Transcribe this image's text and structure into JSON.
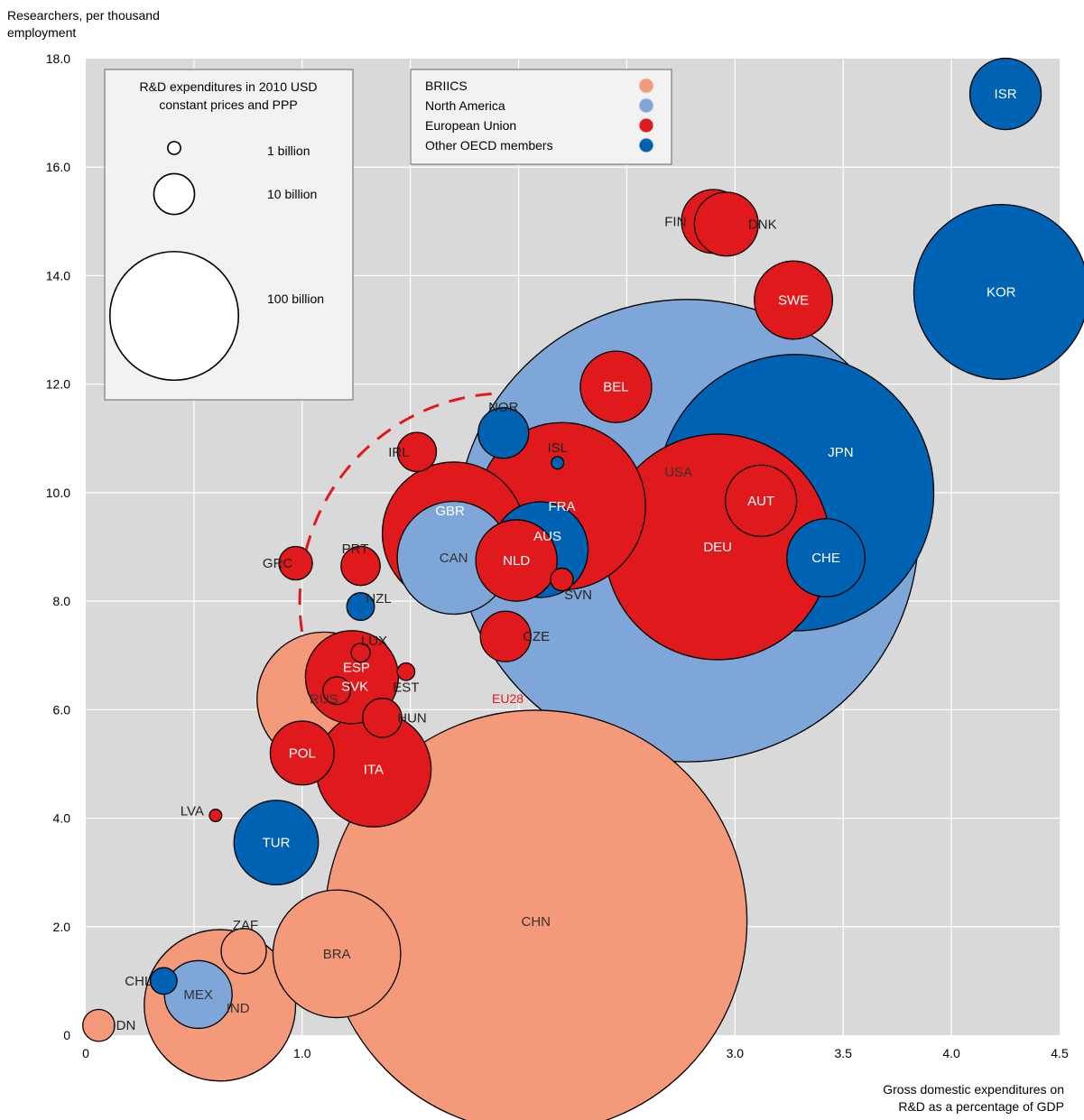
{
  "chart_data": {
    "type": "scatter",
    "bubble": true,
    "xlabel": "Gross domestic expenditures on R&D as a percentage of GDP",
    "ylabel": "Researchers, per thousand employment",
    "xlim": [
      0,
      4.5
    ],
    "ylim": [
      0,
      18
    ],
    "x_ticks": [
      "0",
      "0.5",
      "1.0",
      "1.5",
      "2.0",
      "2.5",
      "3.0",
      "3.5",
      "4.0",
      "4.5"
    ],
    "y_ticks": [
      "0",
      "2.0",
      "4.0",
      "6.0",
      "8.0",
      "10.0",
      "12.0",
      "14.0",
      "16.0",
      "18.0"
    ],
    "grid": true,
    "size_legend": {
      "title": "R&D expenditures in 2010 USD constant prices and PPP",
      "title_lines": [
        "R&D expenditures in 2010 USD",
        "constant prices and PPP"
      ],
      "entries": [
        {
          "label": "1 billion",
          "value": 1
        },
        {
          "label": "10 billion",
          "value": 10
        },
        {
          "label": "100 billion",
          "value": 100
        }
      ]
    },
    "color_legend": {
      "placement": "top",
      "entries": [
        {
          "label": "BRIICS",
          "color": "#f4997a"
        },
        {
          "label": "North America",
          "color": "#7fa6d8"
        },
        {
          "label": "European Union",
          "color": "#e0191d"
        },
        {
          "label": "Other OECD members",
          "color": "#0062b2"
        }
      ]
    },
    "points": [
      {
        "label": "CHN",
        "x": 2.08,
        "y": 2.1,
        "size": 350,
        "group": "BRIICS"
      },
      {
        "label": "USA",
        "x": 2.78,
        "y": 9.3,
        "size": 420,
        "group": "North America"
      },
      {
        "label": "JPN",
        "x": 3.28,
        "y": 10.0,
        "size": 150,
        "group": "Other OECD members"
      },
      {
        "label": "KOR",
        "x": 4.23,
        "y": 13.7,
        "size": 60,
        "group": "Other OECD members"
      },
      {
        "label": "DEU",
        "x": 2.92,
        "y": 9.0,
        "size": 100,
        "group": "European Union"
      },
      {
        "label": "FRA",
        "x": 2.2,
        "y": 9.75,
        "size": 55,
        "group": "European Union"
      },
      {
        "label": "GBR",
        "x": 1.7,
        "y": 9.25,
        "size": 40,
        "group": "European Union"
      },
      {
        "label": "CAN",
        "x": 1.7,
        "y": 8.8,
        "size": 25,
        "group": "North America"
      },
      {
        "label": "AUS",
        "x": 2.1,
        "y": 8.95,
        "size": 18,
        "group": "Other OECD members"
      },
      {
        "label": "NLD",
        "x": 1.99,
        "y": 8.75,
        "size": 13,
        "group": "European Union"
      },
      {
        "label": "ITA",
        "x": 1.33,
        "y": 4.9,
        "size": 26,
        "group": "European Union"
      },
      {
        "label": "RUS",
        "x": 1.1,
        "y": 6.2,
        "size": 35,
        "group": "BRIICS"
      },
      {
        "label": "ESP",
        "x": 1.23,
        "y": 6.6,
        "size": 17,
        "group": "European Union"
      },
      {
        "label": "BRA",
        "x": 1.16,
        "y": 1.5,
        "size": 32,
        "group": "BRIICS"
      },
      {
        "label": "IND",
        "x": 0.62,
        "y": 0.55,
        "size": 45,
        "group": "BRIICS"
      },
      {
        "label": "MEX",
        "x": 0.52,
        "y": 0.75,
        "size": 9,
        "group": "North America"
      },
      {
        "label": "TUR",
        "x": 0.88,
        "y": 3.55,
        "size": 14,
        "group": "Other OECD members"
      },
      {
        "label": "SWE",
        "x": 3.27,
        "y": 13.55,
        "size": 12,
        "group": "European Union"
      },
      {
        "label": "CHE",
        "x": 3.42,
        "y": 8.8,
        "size": 12,
        "group": "Other OECD members"
      },
      {
        "label": "AUT",
        "x": 3.12,
        "y": 9.85,
        "size": 10,
        "group": "European Union"
      },
      {
        "label": "BEL",
        "x": 2.45,
        "y": 11.95,
        "size": 10,
        "group": "European Union"
      },
      {
        "label": "FIN",
        "x": 2.9,
        "y": 15.0,
        "size": 8,
        "group": "European Union"
      },
      {
        "label": "DNK",
        "x": 2.96,
        "y": 14.95,
        "size": 8,
        "group": "European Union"
      },
      {
        "label": "ISR",
        "x": 4.25,
        "y": 17.35,
        "size": 10,
        "group": "Other OECD members"
      },
      {
        "label": "NOR",
        "x": 1.93,
        "y": 11.1,
        "size": 5,
        "group": "Other OECD members"
      },
      {
        "label": "POL",
        "x": 1.0,
        "y": 5.2,
        "size": 8,
        "group": "European Union"
      },
      {
        "label": "CZE",
        "x": 1.94,
        "y": 7.35,
        "size": 5,
        "group": "European Union"
      },
      {
        "label": "ZAF",
        "x": 0.73,
        "y": 1.55,
        "size": 4,
        "group": "BRIICS"
      },
      {
        "label": "PRT",
        "x": 1.27,
        "y": 8.65,
        "size": 3,
        "group": "European Union"
      },
      {
        "label": "HUN",
        "x": 1.37,
        "y": 5.85,
        "size": 3,
        "group": "European Union"
      },
      {
        "label": "IRL",
        "x": 1.53,
        "y": 10.75,
        "size": 3,
        "group": "European Union"
      },
      {
        "label": "GRC",
        "x": 0.97,
        "y": 8.7,
        "size": 2.2,
        "group": "European Union"
      },
      {
        "label": "SVK",
        "x": 1.16,
        "y": 6.35,
        "size": 1.5,
        "group": "European Union"
      },
      {
        "label": "NZL",
        "x": 1.27,
        "y": 7.9,
        "size": 1.5,
        "group": "Other OECD members"
      },
      {
        "label": "CHL",
        "x": 0.36,
        "y": 1.0,
        "size": 1.4,
        "group": "Other OECD members"
      },
      {
        "label": "IDN",
        "x": 0.06,
        "y": 0.18,
        "size": 2.0,
        "group": "BRIICS"
      },
      {
        "label": "SVN",
        "x": 2.2,
        "y": 8.4,
        "size": 1.0,
        "group": "European Union"
      },
      {
        "label": "LUX",
        "x": 1.27,
        "y": 7.05,
        "size": 0.7,
        "group": "European Union"
      },
      {
        "label": "EST",
        "x": 1.48,
        "y": 6.7,
        "size": 0.6,
        "group": "European Union"
      },
      {
        "label": "ISL",
        "x": 2.18,
        "y": 10.55,
        "size": 0.3,
        "group": "Other OECD members"
      },
      {
        "label": "LVA",
        "x": 0.6,
        "y": 4.05,
        "size": 0.3,
        "group": "European Union"
      }
    ],
    "reference": {
      "label": "EU28",
      "x": 1.95,
      "y": 8.0,
      "size": 340,
      "color": "#e0191d"
    }
  }
}
